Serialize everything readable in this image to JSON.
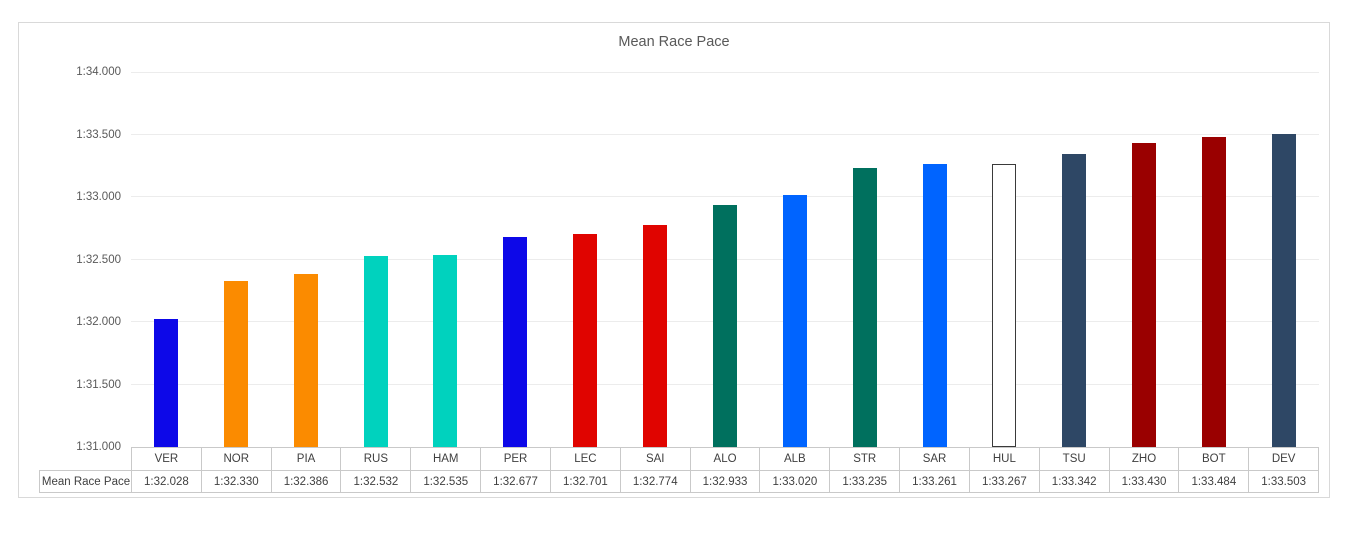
{
  "chart_data": {
    "type": "bar",
    "title": "Mean Race Pace",
    "series_name": "Mean Race Pace",
    "categories": [
      "VER",
      "NOR",
      "PIA",
      "RUS",
      "HAM",
      "PER",
      "LEC",
      "SAI",
      "ALO",
      "ALB",
      "STR",
      "SAR",
      "HUL",
      "TSU",
      "ZHO",
      "BOT",
      "DEV"
    ],
    "values": [
      92.028,
      92.33,
      92.386,
      92.532,
      92.535,
      92.677,
      92.701,
      92.774,
      92.933,
      93.02,
      93.235,
      93.261,
      93.267,
      93.342,
      93.43,
      93.484,
      93.503
    ],
    "value_labels": [
      "1:32.028",
      "1:32.330",
      "1:32.386",
      "1:32.532",
      "1:32.535",
      "1:32.677",
      "1:32.701",
      "1:32.774",
      "1:32.933",
      "1:33.020",
      "1:33.235",
      "1:33.261",
      "1:33.267",
      "1:33.342",
      "1:33.430",
      "1:33.484",
      "1:33.503"
    ],
    "colors": [
      "#0D08E8",
      "#FB8B00",
      "#FB8B00",
      "#00D2BE",
      "#00D2BE",
      "#0D08E8",
      "#E00400",
      "#E00400",
      "#00705E",
      "#0064FF",
      "#00705E",
      "#0064FF",
      "#FFFFFF",
      "#2E4765",
      "#9A0000",
      "#9A0000",
      "#2E4765"
    ],
    "outline_color": "#3A3A3A",
    "yticks": [
      "1:34.000",
      "1:33.500",
      "1:33.000",
      "1:32.500",
      "1:32.000",
      "1:31.500",
      "1:31.000"
    ],
    "ylim": [
      91.0,
      94.0
    ],
    "grid": "horizontal-only",
    "legend": "none",
    "data_table_shown": true
  }
}
